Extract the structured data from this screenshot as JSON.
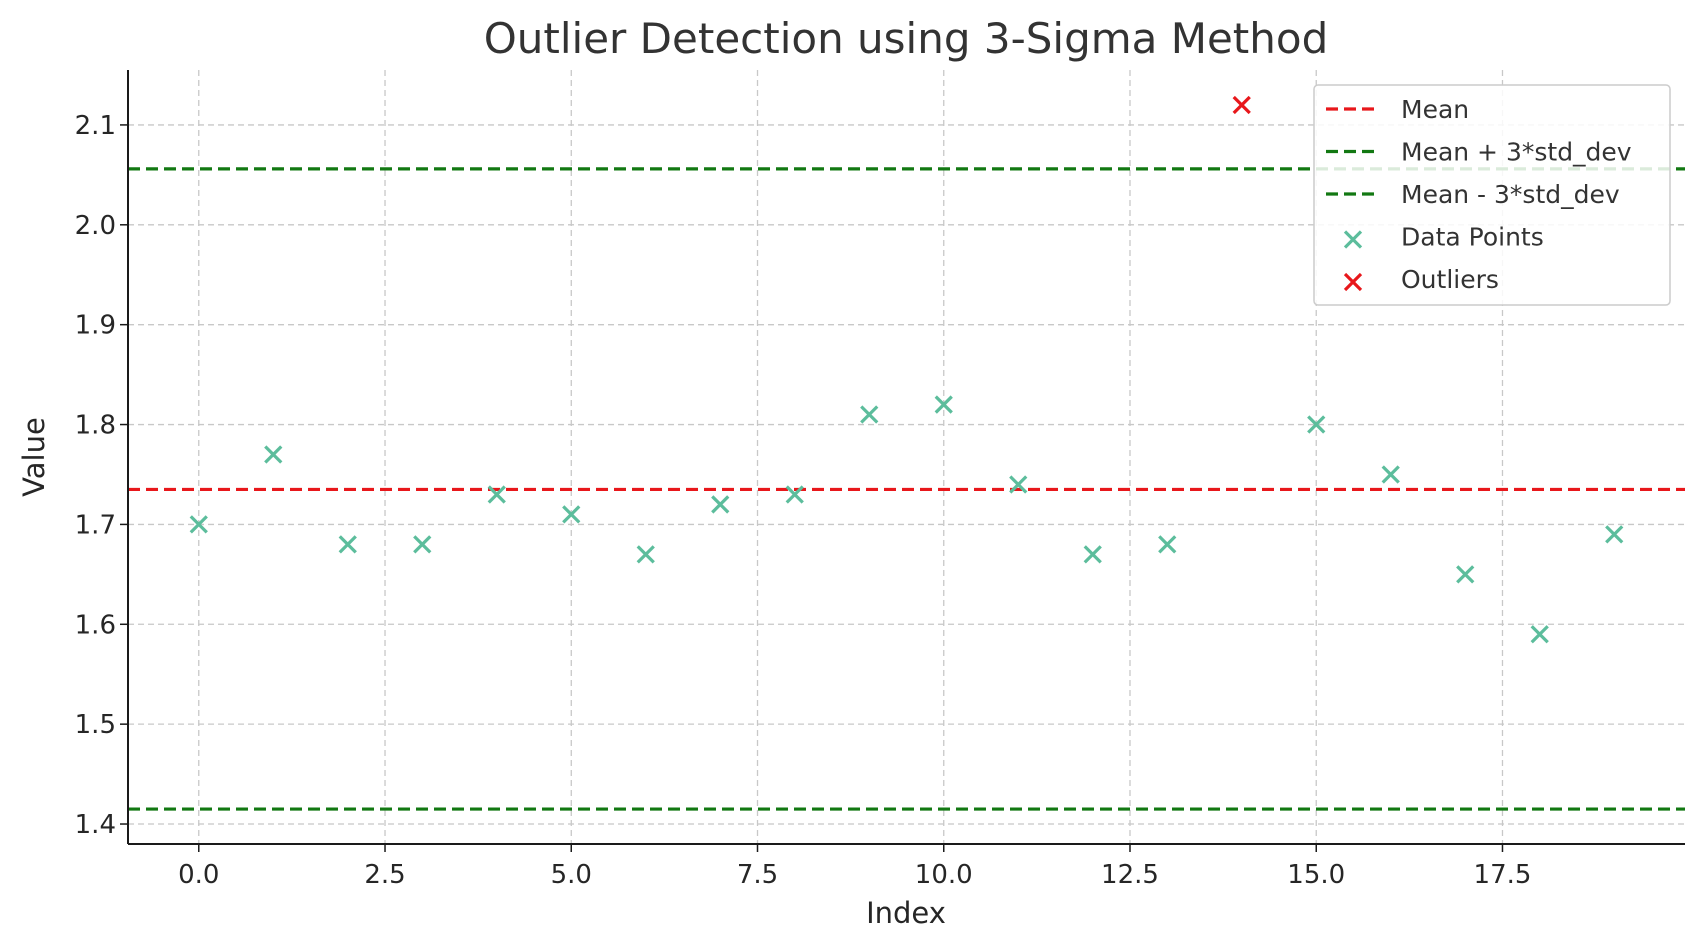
{
  "chart_data": {
    "type": "scatter",
    "title": "Outlier Detection using 3-Sigma Method",
    "xlabel": "Index",
    "ylabel": "Value",
    "xlim": [
      -0.95,
      19.95
    ],
    "ylim": [
      1.38,
      2.155
    ],
    "xticks": [
      "0.0",
      "2.5",
      "5.0",
      "7.5",
      "10.0",
      "12.5",
      "15.0",
      "17.5"
    ],
    "xtick_values": [
      0,
      2.5,
      5,
      7.5,
      10,
      12.5,
      15,
      17.5
    ],
    "yticks": [
      "1.4",
      "1.5",
      "1.6",
      "1.7",
      "1.8",
      "1.9",
      "2.0",
      "2.1"
    ],
    "ytick_values": [
      1.4,
      1.5,
      1.6,
      1.7,
      1.8,
      1.9,
      2.0,
      2.1
    ],
    "grid": true,
    "legend_position": "top-right",
    "reference_lines": [
      {
        "name": "Mean",
        "value": 1.735,
        "color": "#e8171b",
        "style": "dashed"
      },
      {
        "name": "Mean + 3*std_dev",
        "value": 2.056,
        "color": "#127812",
        "style": "dashed"
      },
      {
        "name": "Mean - 3*std_dev",
        "value": 1.415,
        "color": "#127812",
        "style": "dashed"
      }
    ],
    "series": [
      {
        "name": "Data Points",
        "marker": "x",
        "color": "#5cbd9c",
        "x": [
          0,
          1,
          2,
          3,
          4,
          5,
          6,
          7,
          8,
          9,
          10,
          11,
          12,
          13,
          15,
          16,
          17,
          18,
          19
        ],
        "y": [
          1.7,
          1.77,
          1.68,
          1.68,
          1.73,
          1.71,
          1.67,
          1.72,
          1.73,
          1.81,
          1.82,
          1.74,
          1.67,
          1.68,
          1.8,
          1.75,
          1.65,
          1.59,
          1.69
        ]
      },
      {
        "name": "Outliers",
        "marker": "x",
        "color": "#e8171b",
        "x": [
          14
        ],
        "y": [
          2.12
        ]
      }
    ]
  }
}
